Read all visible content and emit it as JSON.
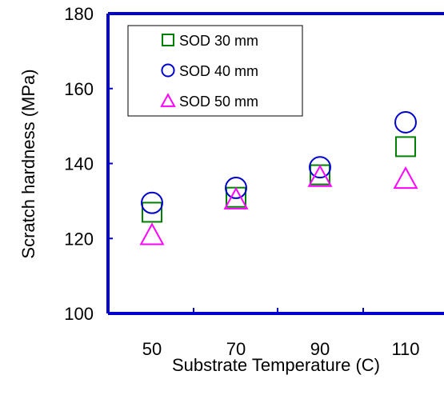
{
  "chart_data": {
    "type": "scatter",
    "title": "",
    "xlabel": "Substrate Temperature (C)",
    "ylabel": "Scratch hardness (MPa)",
    "categories": [
      "50",
      "70",
      "90",
      "110"
    ],
    "ylim": [
      100,
      180
    ],
    "yticks": [
      "100",
      "120",
      "140",
      "160",
      "180"
    ],
    "grid": false,
    "legend_position": "top-left",
    "series": [
      {
        "name": "SOD 30 mm",
        "marker": "square",
        "color": "#008000",
        "values": [
          127,
          131,
          137,
          144.5
        ]
      },
      {
        "name": "SOD 40 mm",
        "marker": "circle",
        "color": "#0000CC",
        "values": [
          129.5,
          133.5,
          139,
          151
        ]
      },
      {
        "name": "SOD 50 mm",
        "marker": "triangle",
        "color": "#FF00FF",
        "values": [
          121,
          130.5,
          136.5,
          136
        ]
      }
    ]
  },
  "colors": {
    "axis": "#0000CC"
  }
}
